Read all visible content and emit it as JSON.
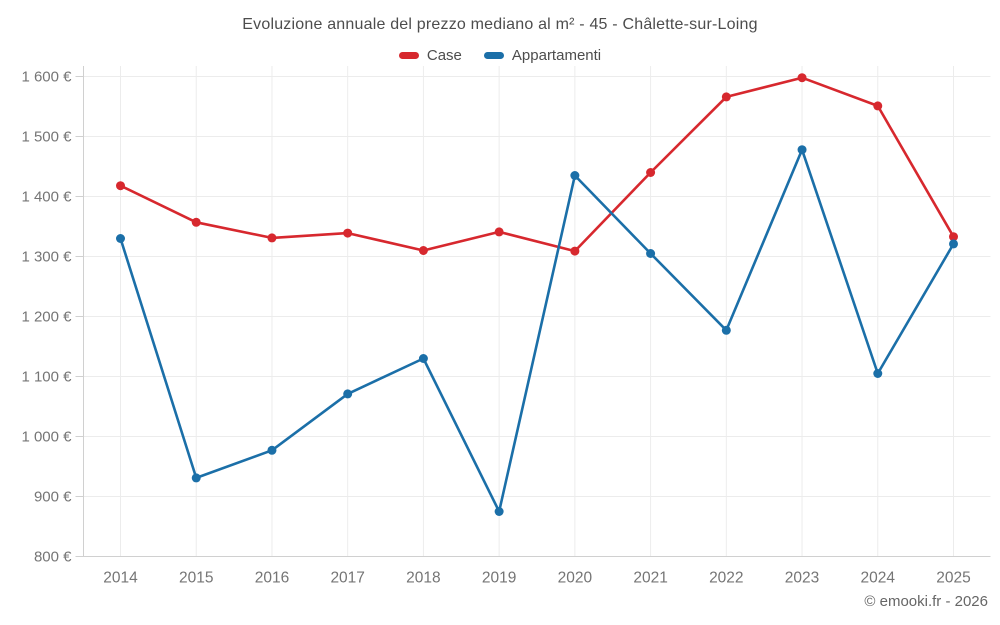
{
  "title": "Evoluzione annuale del prezzo mediano al m² - 45 - Châlette-sur-Loing",
  "legend": [
    {
      "id": "case",
      "label": "Case",
      "color": "#d7282e"
    },
    {
      "id": "appartamenti",
      "label": "Appartamenti",
      "color": "#1b6fa8"
    }
  ],
  "footer": {
    "copyright": "© emooki.fr - 2026"
  },
  "colors": {
    "case_red": "#d7282e",
    "appartamenti_blue": "#1b6fa8",
    "title_text": "#4d4d4d",
    "axis_label_text": "#757575",
    "gridline": "#ececec",
    "axis_line": "#d0d0d0",
    "background": "#ffffff"
  },
  "chart_data": {
    "type": "line",
    "title": "Evoluzione annuale del prezzo mediano al m² - 45 - Châlette-sur-Loing",
    "categories": [
      "2014",
      "2015",
      "2016",
      "2017",
      "2018",
      "2019",
      "2020",
      "2021",
      "2022",
      "2023",
      "2024",
      "2025"
    ],
    "series": [
      {
        "name": "Case",
        "color": "#d7282e",
        "values": [
          1418,
          1357,
          1331,
          1339,
          1310,
          1341,
          1309,
          1440,
          1566,
          1598,
          1551,
          1333
        ]
      },
      {
        "name": "Appartamenti",
        "color": "#1b6fa8",
        "values": [
          1330,
          931,
          977,
          1071,
          1130,
          875,
          1435,
          1305,
          1177,
          1478,
          1105,
          1321
        ]
      }
    ],
    "xlabel": "",
    "ylabel": "",
    "ylim": [
      800,
      1600
    ],
    "ytick_step": 100,
    "ytick_suffix": " €",
    "grid": true,
    "legend_position": "top",
    "marker": "circle"
  }
}
